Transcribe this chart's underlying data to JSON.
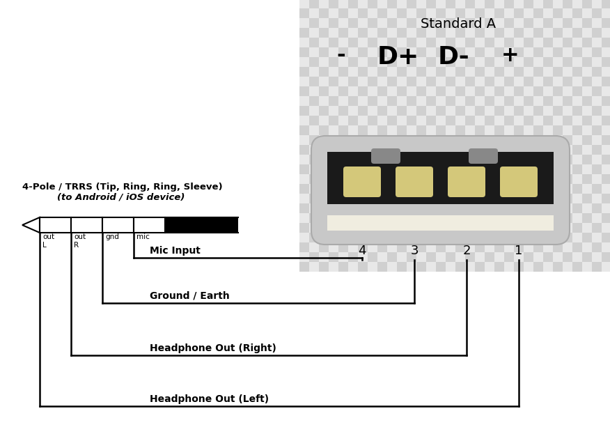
{
  "title": "Standard A",
  "usb_labels": [
    "-",
    "D+",
    "D-",
    "+"
  ],
  "usb_pin_numbers": [
    "4",
    "3",
    "2",
    "1"
  ],
  "trrs_title_line1": "4-Pole / TRRS (Tip, Ring, Ring, Sleeve)",
  "trrs_title_line2": "(to Android / iOS device)",
  "segment_labels": [
    "out\nL",
    "out\nR",
    "gnd",
    "mic"
  ],
  "connection_labels": [
    "Mic Input",
    "Ground / Earth",
    "Headphone Out (Right)",
    "Headphone Out (Left)"
  ],
  "bg_color": "#ffffff",
  "checker_color1": "#d0d0d0",
  "checker_color2": "#e8e8e8",
  "usb_body_color": "#c8c8c8",
  "usb_body_edge": "#aaaaaa",
  "usb_inner_color": "#1a1a1a",
  "usb_contact_color": "#d4c87a",
  "usb_bottom_color": "#f0ede0",
  "usb_notch_color": "#888888",
  "line_color": "#000000"
}
